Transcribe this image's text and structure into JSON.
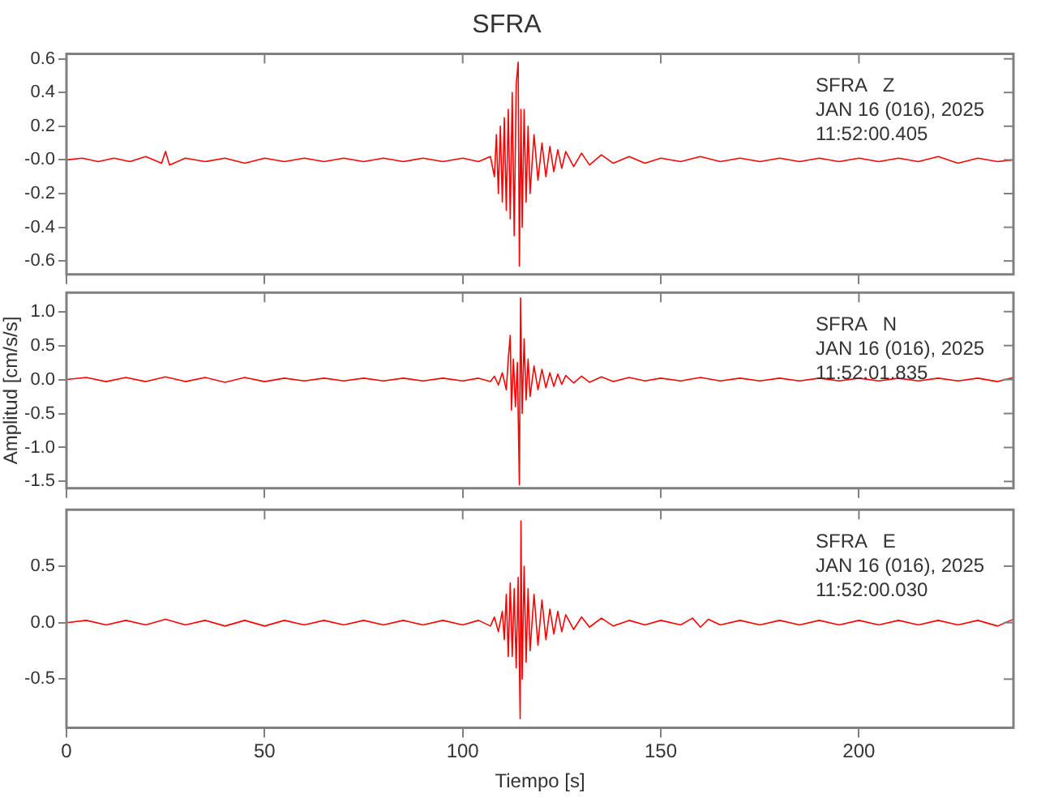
{
  "chart_data": [
    {
      "type": "line",
      "title": "SFRA",
      "xlim": [
        0,
        239
      ],
      "xticks": [
        0,
        50,
        100,
        150,
        200
      ],
      "ylim": [
        -0.68,
        0.63
      ],
      "yticks": [
        -0.6,
        -0.4,
        -0.2,
        {
          "value": 0,
          "label": "-0.0"
        },
        0.2,
        0.4,
        0.6
      ],
      "tick_labels": "y",
      "annotations": [
        "SFRA   Z",
        "JAN 16 (016), 2025",
        "11:52:00.405"
      ],
      "series": [
        {
          "color": "#ff0000",
          "x": [
            0,
            4,
            8,
            12,
            16,
            20,
            24,
            25,
            26,
            30,
            35,
            40,
            45,
            50,
            55,
            60,
            65,
            70,
            75,
            80,
            85,
            90,
            95,
            100,
            104,
            107,
            108,
            108.5,
            109,
            109.5,
            110,
            110.5,
            111,
            111.5,
            112,
            112.5,
            113,
            113.5,
            114,
            114.3,
            114.7,
            115,
            115.5,
            116,
            116.5,
            117,
            118,
            119,
            120,
            121,
            122,
            123,
            124,
            125,
            126,
            128,
            130,
            132,
            135,
            138,
            142,
            146,
            150,
            155,
            160,
            165,
            170,
            175,
            180,
            185,
            190,
            195,
            200,
            205,
            210,
            215,
            220,
            225,
            230,
            235,
            239
          ],
          "values": [
            0,
            0.01,
            -0.01,
            0.01,
            -0.01,
            0.02,
            -0.02,
            0.05,
            -0.03,
            0.01,
            -0.01,
            0.01,
            -0.02,
            0.01,
            -0.01,
            0.01,
            -0.01,
            0.01,
            -0.01,
            0.01,
            -0.01,
            0.01,
            -0.01,
            0.01,
            -0.01,
            0.02,
            -0.1,
            0.15,
            -0.2,
            0.2,
            -0.25,
            0.25,
            -0.3,
            0.3,
            -0.35,
            0.4,
            -0.45,
            0.45,
            0.58,
            -0.63,
            0.3,
            -0.4,
            0.3,
            -0.25,
            0.2,
            -0.2,
            0.15,
            -0.12,
            0.1,
            -0.1,
            0.08,
            -0.07,
            0.06,
            -0.05,
            0.05,
            -0.04,
            0.04,
            -0.03,
            0.03,
            -0.02,
            0.02,
            -0.02,
            0.01,
            -0.01,
            0.02,
            -0.01,
            0.01,
            -0.01,
            0.01,
            -0.01,
            0.01,
            -0.01,
            0.01,
            -0.01,
            0.01,
            -0.01,
            0.02,
            -0.02,
            0.01,
            -0.01,
            0
          ]
        }
      ]
    },
    {
      "type": "line",
      "ylabel": "Amplitud [cm/s/s]",
      "xlim": [
        0,
        239
      ],
      "xticks": [
        0,
        50,
        100,
        150,
        200
      ],
      "ylim": [
        -1.6,
        1.28
      ],
      "yticks": [
        -1.5,
        {
          "value": -1,
          "label": "-1.0"
        },
        -0.5,
        {
          "value": 0,
          "label": "0.0"
        },
        0.5,
        {
          "value": 1,
          "label": "1.0"
        }
      ],
      "tick_labels": "y",
      "annotations": [
        "SFRA   N",
        "JAN 16 (016), 2025",
        "11:52:01.835"
      ],
      "series": [
        {
          "color": "#ff0000",
          "x": [
            0,
            5,
            10,
            15,
            20,
            25,
            30,
            35,
            40,
            45,
            50,
            55,
            60,
            65,
            70,
            75,
            80,
            85,
            90,
            95,
            100,
            104,
            107,
            108,
            109,
            110,
            111,
            111.5,
            112,
            112.3,
            112.8,
            113.3,
            113.8,
            114.3,
            114.6,
            115,
            115.5,
            116,
            116.5,
            117,
            118,
            119,
            120,
            121,
            122,
            123,
            124,
            125,
            126,
            128,
            130,
            132,
            135,
            138,
            142,
            146,
            150,
            155,
            160,
            165,
            170,
            175,
            180,
            185,
            190,
            195,
            200,
            205,
            210,
            215,
            220,
            225,
            230,
            235,
            239
          ],
          "values": [
            0,
            0.03,
            -0.03,
            0.03,
            -0.03,
            0.04,
            -0.03,
            0.03,
            -0.04,
            0.03,
            -0.03,
            0.02,
            -0.02,
            0.02,
            -0.02,
            0.02,
            -0.02,
            0.02,
            -0.02,
            0.02,
            -0.02,
            0.02,
            -0.03,
            0.05,
            -0.08,
            0.1,
            -0.15,
            0.3,
            0.65,
            -0.45,
            0.3,
            -0.4,
            0.25,
            -1.55,
            1.2,
            -0.5,
            0.6,
            -0.3,
            0.3,
            -0.25,
            0.2,
            -0.15,
            0.15,
            -0.12,
            0.1,
            -0.1,
            0.08,
            -0.07,
            0.06,
            -0.05,
            0.05,
            -0.04,
            0.04,
            -0.03,
            0.03,
            -0.02,
            0.02,
            -0.02,
            0.03,
            -0.02,
            0.02,
            -0.02,
            0.02,
            -0.02,
            0.02,
            -0.02,
            0.02,
            -0.02,
            0.02,
            -0.02,
            0.02,
            -0.02,
            0.02,
            -0.03,
            0.03
          ]
        }
      ]
    },
    {
      "type": "line",
      "xlabel": "Tiempo [s]",
      "xlim": [
        0,
        239
      ],
      "xticks": [
        0,
        50,
        100,
        150,
        200
      ],
      "ylim": [
        -0.93,
        1.0
      ],
      "yticks": [
        -0.5,
        {
          "value": 0,
          "label": "0.0"
        },
        0.5
      ],
      "annotations": [
        "SFRA   E",
        "JAN 16 (016), 2025",
        "11:52:00.030"
      ],
      "series": [
        {
          "color": "#ff0000",
          "x": [
            0,
            5,
            10,
            15,
            20,
            25,
            30,
            35,
            40,
            45,
            50,
            55,
            60,
            65,
            70,
            75,
            80,
            85,
            90,
            95,
            100,
            104,
            107,
            108,
            109,
            110,
            110.5,
            111,
            111.5,
            112,
            112.5,
            113,
            113.5,
            114,
            114.5,
            114.7,
            115,
            115.5,
            116,
            116.5,
            117,
            118,
            119,
            120,
            121,
            122,
            123,
            124,
            125,
            126,
            128,
            130,
            132,
            135,
            138,
            142,
            146,
            150,
            155,
            158,
            160,
            162,
            165,
            170,
            175,
            180,
            185,
            190,
            195,
            200,
            205,
            210,
            215,
            220,
            225,
            230,
            235,
            239
          ],
          "values": [
            0,
            0.02,
            -0.02,
            0.02,
            -0.02,
            0.03,
            -0.02,
            0.02,
            -0.03,
            0.02,
            -0.03,
            0.02,
            -0.02,
            0.02,
            -0.02,
            0.02,
            -0.02,
            0.02,
            -0.02,
            0.02,
            -0.02,
            0.02,
            -0.03,
            0.05,
            -0.08,
            0.1,
            -0.15,
            0.25,
            -0.3,
            0.35,
            -0.3,
            0.3,
            -0.4,
            0.4,
            -0.85,
            0.9,
            -0.5,
            0.5,
            -0.35,
            0.3,
            -0.25,
            0.25,
            -0.2,
            0.2,
            -0.15,
            0.12,
            -0.1,
            0.1,
            -0.08,
            0.07,
            -0.06,
            0.05,
            -0.04,
            0.04,
            -0.03,
            0.02,
            -0.02,
            0.02,
            -0.02,
            0.04,
            -0.04,
            0.03,
            -0.02,
            0.02,
            -0.02,
            0.02,
            -0.02,
            0.02,
            -0.02,
            0.02,
            -0.02,
            0.02,
            -0.02,
            0.02,
            -0.02,
            0.02,
            -0.03,
            0.03
          ]
        }
      ]
    }
  ]
}
